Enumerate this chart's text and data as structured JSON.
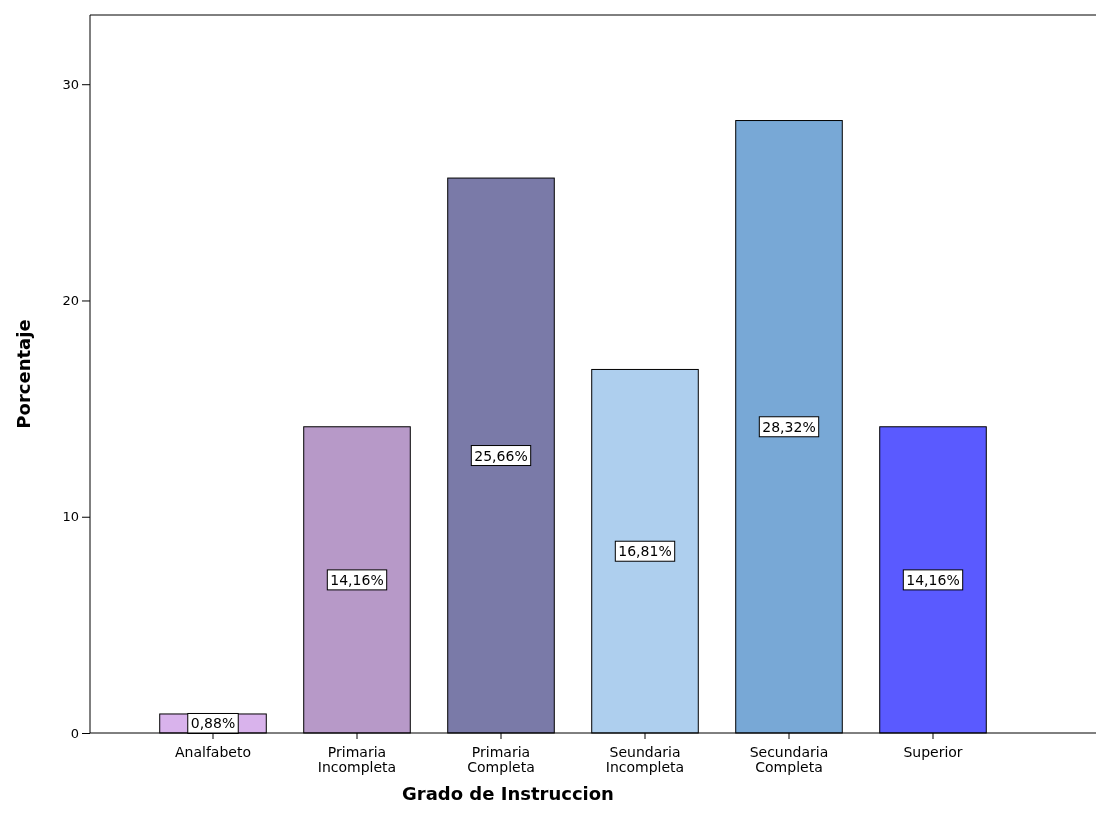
{
  "chart_data": {
    "type": "bar",
    "xlabel": "Grado de Instruccion",
    "ylabel": "Porcentaje",
    "categories": [
      "Analfabeto",
      "Primaria Incompleta",
      "Primaria Completa",
      "Seundaria Incompleta",
      "Secundaria Completa",
      "Superior"
    ],
    "values": [
      0.88,
      14.16,
      25.66,
      16.81,
      28.32,
      14.16
    ],
    "colors": [
      "#d9b3ec",
      "#b799c8",
      "#7a7aa8",
      "#aecfee",
      "#78a8d6",
      "#5a5aff"
    ],
    "value_labels": [
      "0,88%",
      "14,16%",
      "25,66%",
      "16,81%",
      "28,32%",
      "14,16%"
    ],
    "ylim": [
      0,
      33.2
    ],
    "yticks": [
      0,
      10,
      20,
      30
    ],
    "grid": false
  }
}
